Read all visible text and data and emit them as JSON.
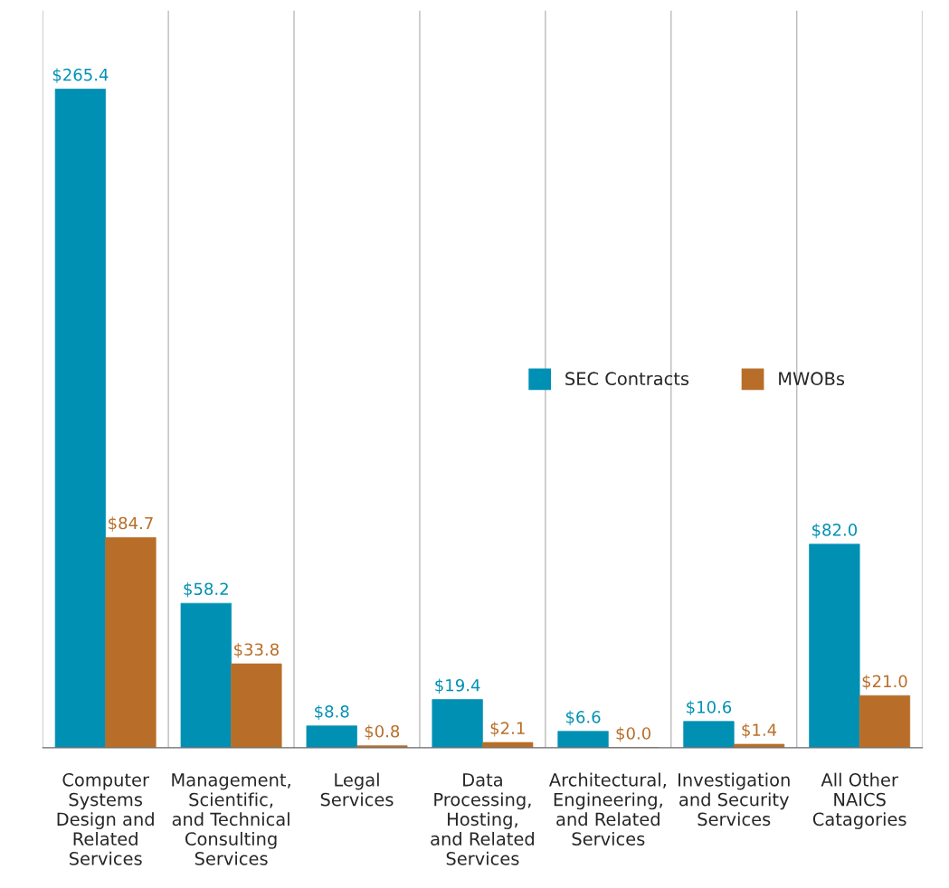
{
  "chart_data": {
    "type": "bar",
    "categories": [
      "Computer\nSystems\nDesign and\nRelated\nServices",
      "Management,\nScientific,\nand Technical\nConsulting\nServices",
      "Legal\nServices",
      "Data\nProcessing,\nHosting,\nand Related\nServices",
      "Architectural,\nEngineering,\nand Related\nServices",
      "Investigation\nand Security\nServices",
      "All Other\nNAICS\nCatagories"
    ],
    "series": [
      {
        "name": "SEC Contracts",
        "color": "#0090b4",
        "values": [
          265.4,
          58.2,
          8.8,
          19.4,
          6.6,
          10.6,
          82.0
        ],
        "value_labels": [
          "$265.4",
          "$58.2",
          "$8.8",
          "$19.4",
          "$6.6",
          "$10.6",
          "$82.0"
        ]
      },
      {
        "name": "MWOBs",
        "color": "#b86e28",
        "values": [
          84.7,
          33.8,
          0.8,
          2.1,
          0.0,
          1.4,
          21.0
        ],
        "value_labels": [
          "$84.7",
          "$33.8",
          "$0.8",
          "$2.1",
          "$0.0",
          "$1.4",
          "$21.0"
        ]
      }
    ],
    "ylim": [
      0,
      297
    ],
    "tick_labels": "x",
    "grid": "x",
    "legend": "right"
  }
}
